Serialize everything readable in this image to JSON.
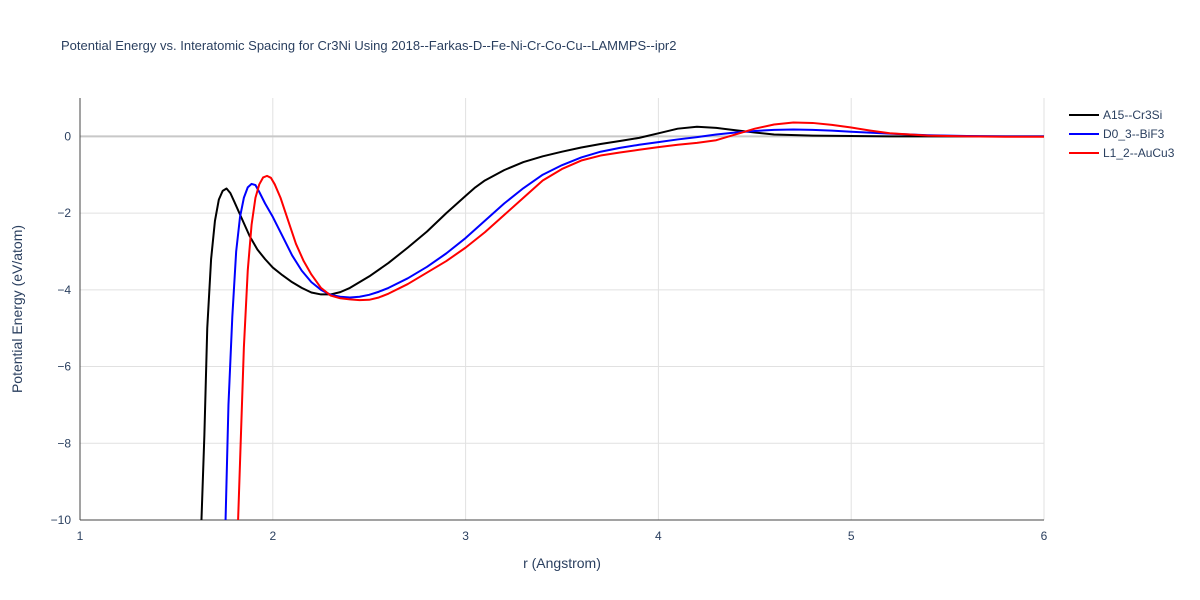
{
  "chart_data": {
    "type": "line",
    "title": "Potential Energy vs. Interatomic Spacing for Cr3Ni Using 2018--Farkas-D--Fe-Ni-Cr-Co-Cu--LAMMPS--ipr2",
    "xlabel": "r (Angstrom)",
    "ylabel": "Potential Energy (eV/atom)",
    "xlim": [
      1,
      6
    ],
    "ylim": [
      -10,
      1
    ],
    "x_ticks": [
      1,
      2,
      3,
      4,
      5,
      6
    ],
    "x_tick_labels": [
      "1",
      "2",
      "3",
      "4",
      "5",
      "6"
    ],
    "y_ticks": [
      0,
      -2,
      -4,
      -6,
      -8,
      -10
    ],
    "y_tick_labels": [
      "0",
      "−2",
      "−4",
      "−6",
      "−8",
      "−10"
    ],
    "grid": true,
    "legend_position": "top-right",
    "series": [
      {
        "name": "A15--Cr3Si",
        "color": "#000000",
        "x": [
          1.63,
          1.645,
          1.66,
          1.68,
          1.7,
          1.72,
          1.74,
          1.76,
          1.78,
          1.8,
          1.84,
          1.88,
          1.92,
          1.96,
          2.0,
          2.05,
          2.1,
          2.15,
          2.2,
          2.25,
          2.3,
          2.35,
          2.4,
          2.5,
          2.6,
          2.7,
          2.8,
          2.9,
          3.0,
          3.05,
          3.1,
          3.2,
          3.3,
          3.4,
          3.5,
          3.6,
          3.7,
          3.8,
          3.9,
          4.0,
          4.1,
          4.2,
          4.3,
          4.4,
          4.5,
          4.6,
          4.8,
          5.0,
          5.2,
          5.5,
          5.8,
          6.0
        ],
        "y": [
          -10.0,
          -7.8,
          -5.0,
          -3.2,
          -2.2,
          -1.65,
          -1.42,
          -1.36,
          -1.48,
          -1.7,
          -2.15,
          -2.6,
          -2.95,
          -3.2,
          -3.42,
          -3.62,
          -3.8,
          -3.95,
          -4.07,
          -4.12,
          -4.12,
          -4.06,
          -3.95,
          -3.65,
          -3.3,
          -2.9,
          -2.48,
          -2.0,
          -1.55,
          -1.33,
          -1.15,
          -0.88,
          -0.67,
          -0.52,
          -0.4,
          -0.29,
          -0.2,
          -0.12,
          -0.04,
          0.08,
          0.2,
          0.25,
          0.22,
          0.16,
          0.1,
          0.05,
          0.02,
          0.01,
          0.0,
          0.0,
          0.0,
          0.0
        ]
      },
      {
        "name": "D0_3--BiF3",
        "color": "#0000ff",
        "x": [
          1.755,
          1.77,
          1.79,
          1.81,
          1.83,
          1.85,
          1.87,
          1.89,
          1.91,
          1.93,
          1.96,
          2.0,
          2.05,
          2.1,
          2.15,
          2.2,
          2.25,
          2.3,
          2.35,
          2.4,
          2.45,
          2.5,
          2.55,
          2.6,
          2.7,
          2.8,
          2.9,
          3.0,
          3.1,
          3.2,
          3.3,
          3.4,
          3.5,
          3.6,
          3.7,
          3.8,
          3.9,
          4.0,
          4.1,
          4.2,
          4.3,
          4.4,
          4.5,
          4.6,
          4.7,
          4.8,
          4.9,
          5.0,
          5.2,
          5.4,
          5.6,
          5.8,
          6.0
        ],
        "y": [
          -10.0,
          -7.0,
          -4.7,
          -3.0,
          -2.1,
          -1.6,
          -1.33,
          -1.24,
          -1.27,
          -1.45,
          -1.75,
          -2.1,
          -2.6,
          -3.1,
          -3.5,
          -3.8,
          -4.0,
          -4.13,
          -4.18,
          -4.2,
          -4.18,
          -4.13,
          -4.05,
          -3.95,
          -3.7,
          -3.4,
          -3.05,
          -2.65,
          -2.2,
          -1.75,
          -1.35,
          -1.0,
          -0.75,
          -0.55,
          -0.4,
          -0.3,
          -0.22,
          -0.15,
          -0.08,
          -0.02,
          0.05,
          0.1,
          0.14,
          0.17,
          0.18,
          0.17,
          0.15,
          0.12,
          0.07,
          0.03,
          0.01,
          0.0,
          0.0
        ]
      },
      {
        "name": "L1_2--AuCu3",
        "color": "#ff0000",
        "x": [
          1.82,
          1.83,
          1.85,
          1.87,
          1.89,
          1.91,
          1.93,
          1.95,
          1.97,
          1.99,
          2.01,
          2.04,
          2.08,
          2.12,
          2.16,
          2.2,
          2.25,
          2.3,
          2.35,
          2.4,
          2.45,
          2.5,
          2.55,
          2.6,
          2.7,
          2.8,
          2.9,
          3.0,
          3.1,
          3.2,
          3.3,
          3.4,
          3.5,
          3.6,
          3.7,
          3.8,
          3.9,
          4.0,
          4.1,
          4.2,
          4.3,
          4.4,
          4.5,
          4.6,
          4.7,
          4.8,
          4.9,
          5.0,
          5.1,
          5.2,
          5.4,
          5.6,
          5.8,
          6.0
        ],
        "y": [
          -10.0,
          -8.5,
          -5.5,
          -3.5,
          -2.3,
          -1.6,
          -1.25,
          -1.07,
          -1.03,
          -1.08,
          -1.25,
          -1.6,
          -2.2,
          -2.8,
          -3.25,
          -3.6,
          -3.95,
          -4.15,
          -4.22,
          -4.25,
          -4.27,
          -4.26,
          -4.2,
          -4.1,
          -3.85,
          -3.55,
          -3.25,
          -2.9,
          -2.5,
          -2.05,
          -1.6,
          -1.15,
          -0.85,
          -0.63,
          -0.5,
          -0.42,
          -0.35,
          -0.28,
          -0.22,
          -0.17,
          -0.1,
          0.05,
          0.2,
          0.31,
          0.36,
          0.35,
          0.3,
          0.23,
          0.15,
          0.08,
          0.02,
          0.0,
          -0.01,
          -0.01
        ]
      }
    ]
  }
}
